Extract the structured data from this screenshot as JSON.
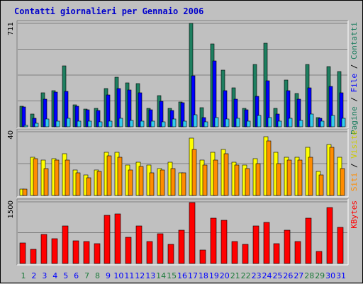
{
  "chart_data": {
    "type": "bar",
    "title": "Contatti giornalieri per Gennaio 2006",
    "categories": [
      "1",
      "2",
      "3",
      "4",
      "5",
      "6",
      "7",
      "8",
      "9",
      "10",
      "11",
      "12",
      "13",
      "14",
      "15",
      "16",
      "17",
      "18",
      "19",
      "20",
      "21",
      "22",
      "23",
      "24",
      "25",
      "26",
      "27",
      "28",
      "29",
      "30",
      "31"
    ],
    "weekend_days": [
      "1",
      "7",
      "8",
      "14",
      "15",
      "21",
      "22",
      "28",
      "29"
    ],
    "colors": {
      "background": "#c0c0c0",
      "panel": "#c0c0c0",
      "grid": "#808080",
      "weekday": "#0000ff",
      "weekend": "#1c7a3a",
      "pagine": "#1e7f60",
      "file": "#0000ff",
      "contatti": "#33ccee",
      "siti": "#ff8c00",
      "visite": "#ffff00",
      "kbytes": "#ff0000"
    },
    "panels": [
      {
        "name": "top",
        "ymax_label": "711",
        "ymax": 711,
        "legend": [
          {
            "text": "Pagine",
            "color": "#1e7f60"
          },
          {
            "text": " / ",
            "color": "#000000"
          },
          {
            "text": "File",
            "color": "#0000ff"
          },
          {
            "text": " / ",
            "color": "#000000"
          },
          {
            "text": "Contatti",
            "color": "#1e7f60"
          }
        ],
        "series": [
          {
            "name": "Pagine",
            "values": [
              140,
              88,
              235,
              250,
              420,
              150,
              123,
              128,
              263,
              340,
              300,
              295,
              128,
              215,
              128,
              172,
              711,
              130,
              570,
              388,
              270,
              125,
              430,
              575,
              128,
              320,
              230,
              428,
              63,
              415,
              380
            ]
          },
          {
            "name": "File",
            "values": [
              135,
              58,
              190,
              240,
              245,
              140,
              115,
              110,
              220,
              265,
              255,
              233,
              118,
              175,
              110,
              165,
              350,
              65,
              455,
              250,
              190,
              118,
              210,
              315,
              90,
              248,
              188,
              270,
              58,
              278,
              235
            ]
          },
          {
            "name": "Contatti",
            "values": [
              12,
              25,
              55,
              40,
              58,
              40,
              38,
              32,
              40,
              58,
              45,
              38,
              40,
              35,
              55,
              40,
              85,
              35,
              65,
              55,
              58,
              38,
              78,
              65,
              38,
              58,
              45,
              90,
              38,
              78,
              58
            ]
          }
        ]
      },
      {
        "name": "middle",
        "ymax_label": "40",
        "ymax": 40,
        "legend": [
          {
            "text": "Siti",
            "color": "#ff8c00"
          },
          {
            "text": " / ",
            "color": "#000000"
          },
          {
            "text": "Visite",
            "color": "#cccc00"
          }
        ],
        "series": [
          {
            "name": "Visite",
            "values": [
              4,
              24,
              22,
              23,
              26,
              16,
              13,
              16,
              27,
              27,
              19,
              21,
              19,
              17,
              21,
              14,
              36,
              22,
              27,
              29,
              21,
              19,
              23,
              37,
              27,
              24,
              24,
              30,
              15,
              32,
              24
            ]
          },
          {
            "name": "Siti",
            "values": [
              4,
              23,
              17,
              22,
              22,
              14,
              11,
              15,
              25,
              24,
              16,
              18,
              14,
              16,
              17,
              14,
              29,
              19,
              22,
              26,
              19,
              17,
              20,
              34,
              20,
              22,
              22,
              24,
              13,
              30,
              17
            ]
          }
        ]
      },
      {
        "name": "bottom",
        "ymax_label": "1500",
        "ymax": 1500,
        "legend": [
          {
            "text": "KBytes",
            "color": "#ff0000"
          }
        ],
        "series": [
          {
            "name": "KBytes",
            "values": [
              500,
              350,
              700,
              600,
              920,
              560,
              530,
              480,
              1180,
              1200,
              640,
              920,
              530,
              720,
              470,
              810,
              1480,
              320,
              1100,
              1050,
              530,
              460,
              920,
              1000,
              490,
              810,
              530,
              1100,
              290,
              1360,
              880
            ]
          }
        ]
      }
    ]
  }
}
